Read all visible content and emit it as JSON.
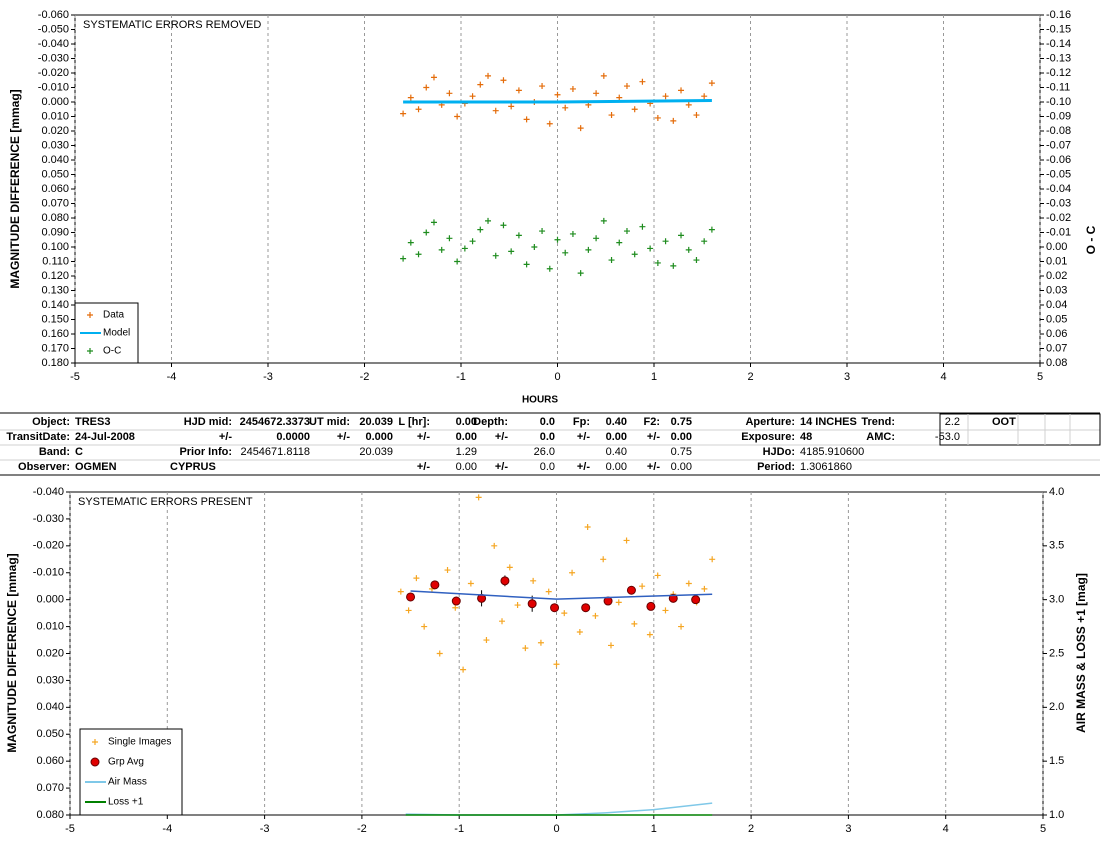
{
  "chart_data": [
    {
      "type": "scatter",
      "title": "SYSTEMATIC ERRORS REMOVED",
      "x_label": "HOURS",
      "y_label": "MAGNITUDE DIFFERENCE [mmag]",
      "y2_label": "O - C",
      "xlim": [
        -5,
        5
      ],
      "xticks": [
        -5,
        -4,
        -3,
        -2,
        -1,
        0,
        1,
        2,
        3,
        4,
        5
      ],
      "ylim": [
        -0.06,
        0.18
      ],
      "y_inverted": true,
      "yticks": [
        {
          "value": -0.06,
          "label": "-0.060"
        },
        {
          "value": -0.05,
          "label": "-0.050"
        },
        {
          "value": -0.04,
          "label": "-0.040"
        },
        {
          "value": -0.03,
          "label": "-0.030"
        },
        {
          "value": -0.02,
          "label": "-0.020"
        },
        {
          "value": -0.01,
          "label": "-0.010"
        },
        {
          "value": 0,
          "label": "0.000"
        },
        {
          "value": 0.01,
          "label": "0.010"
        },
        {
          "value": 0.02,
          "label": "0.020"
        },
        {
          "value": 0.03,
          "label": "0.030"
        },
        {
          "value": 0.04,
          "label": "0.040"
        },
        {
          "value": 0.05,
          "label": "0.050"
        },
        {
          "value": 0.06,
          "label": "0.060"
        },
        {
          "value": 0.07,
          "label": "0.070"
        },
        {
          "value": 0.08,
          "label": "0.080"
        },
        {
          "value": 0.09,
          "label": "0.090"
        },
        {
          "value": 0.1,
          "label": "0.100"
        },
        {
          "value": 0.11,
          "label": "0.110"
        },
        {
          "value": 0.12,
          "label": "0.120"
        },
        {
          "value": 0.13,
          "label": "0.130"
        },
        {
          "value": 0.14,
          "label": "0.140"
        },
        {
          "value": 0.15,
          "label": "0.150"
        },
        {
          "value": 0.16,
          "label": "0.160"
        },
        {
          "value": 0.17,
          "label": "0.170"
        },
        {
          "value": 0.18,
          "label": "0.180"
        }
      ],
      "y2lim": [
        -0.16,
        0.08
      ],
      "y2_inverted": true,
      "y2ticks": [
        -0.16,
        -0.15,
        -0.14,
        -0.13,
        -0.12,
        -0.11,
        {
          "value": -0.1,
          "label": "-0.10"
        },
        -0.09,
        -0.08,
        -0.07,
        -0.06,
        -0.05,
        -0.04,
        -0.03,
        -0.02,
        -0.01,
        {
          "value": 0,
          "label": "0.00"
        },
        0.01,
        0.02,
        0.03,
        0.04,
        0.05,
        0.06,
        0.07,
        0.08
      ],
      "xgrid": true,
      "legend": "lower left",
      "series": [
        {
          "name": "Data",
          "color": "#e46c0a",
          "style": "plus",
          "x": [
            -1.6,
            -1.52,
            -1.44,
            -1.36,
            -1.28,
            -1.2,
            -1.12,
            -1.04,
            -0.96,
            -0.88,
            -0.8,
            -0.72,
            -0.64,
            -0.56,
            -0.48,
            -0.4,
            -0.32,
            -0.24,
            -0.16,
            -0.08,
            0,
            0.08,
            0.16,
            0.24,
            0.32,
            0.4,
            0.48,
            0.56,
            0.64,
            0.72,
            0.8,
            0.88,
            0.96,
            1.04,
            1.12,
            1.2,
            1.28,
            1.36,
            1.44,
            1.52,
            1.6
          ],
          "values": [
            0.008,
            -0.003,
            0.005,
            -0.01,
            -0.017,
            0.002,
            -0.006,
            0.01,
            0.001,
            -0.004,
            -0.012,
            -0.018,
            0.006,
            -0.015,
            0.003,
            -0.008,
            0.012,
            0.0,
            -0.011,
            0.015,
            -0.005,
            0.004,
            -0.009,
            0.018,
            0.002,
            -0.006,
            -0.018,
            0.009,
            -0.003,
            -0.011,
            0.005,
            -0.014,
            0.001,
            0.011,
            -0.004,
            0.013,
            -0.008,
            0.002,
            0.009,
            -0.004,
            -0.013
          ]
        },
        {
          "name": "Model",
          "color": "#00b0f0",
          "style": "line",
          "x": [
            -1.6,
            0,
            1.6
          ],
          "values": [
            0.0,
            0.0,
            -0.001
          ]
        },
        {
          "name": "O-C",
          "color": "#1e8c1e",
          "style": "plus",
          "axis": "y2",
          "x": [
            -1.6,
            -1.52,
            -1.44,
            -1.36,
            -1.28,
            -1.2,
            -1.12,
            -1.04,
            -0.96,
            -0.88,
            -0.8,
            -0.72,
            -0.64,
            -0.56,
            -0.48,
            -0.4,
            -0.32,
            -0.24,
            -0.16,
            -0.08,
            0,
            0.08,
            0.16,
            0.24,
            0.32,
            0.4,
            0.48,
            0.56,
            0.64,
            0.72,
            0.8,
            0.88,
            0.96,
            1.04,
            1.12,
            1.2,
            1.28,
            1.36,
            1.44,
            1.52,
            1.6
          ],
          "values": [
            0.008,
            -0.003,
            0.005,
            -0.01,
            -0.017,
            0.002,
            -0.006,
            0.01,
            0.001,
            -0.004,
            -0.012,
            -0.018,
            0.006,
            -0.015,
            0.003,
            -0.008,
            0.012,
            0.0,
            -0.011,
            0.015,
            -0.005,
            0.004,
            -0.009,
            0.018,
            0.002,
            -0.006,
            -0.018,
            0.009,
            -0.003,
            -0.011,
            0.005,
            -0.014,
            0.001,
            0.011,
            -0.004,
            0.013,
            -0.008,
            0.002,
            0.009,
            -0.004,
            -0.012
          ]
        }
      ]
    },
    {
      "type": "scatter",
      "title": "SYSTEMATIC ERRORS PRESENT",
      "y_label": "MAGNITUDE DIFFERENCE [mmag]",
      "y2_label": "AIR MASS & LOSS +1 [mag]",
      "xlim": [
        -5,
        5
      ],
      "xticks": [
        -5,
        -4,
        -3,
        -2,
        -1,
        0,
        1,
        2,
        3,
        4,
        5
      ],
      "ylim": [
        -0.04,
        0.08
      ],
      "y_inverted": true,
      "yticks": [
        {
          "value": -0.04,
          "label": "-0.040"
        },
        {
          "value": -0.03,
          "label": "-0.030"
        },
        {
          "value": -0.02,
          "label": "-0.020"
        },
        {
          "value": -0.01,
          "label": "-0.010"
        },
        {
          "value": 0,
          "label": "0.000"
        },
        {
          "value": 0.01,
          "label": "0.010"
        },
        {
          "value": 0.02,
          "label": "0.020"
        },
        {
          "value": 0.03,
          "label": "0.030"
        },
        {
          "value": 0.04,
          "label": "0.040"
        },
        {
          "value": 0.05,
          "label": "0.050"
        },
        {
          "value": 0.06,
          "label": "0.060"
        },
        {
          "value": 0.07,
          "label": "0.070"
        },
        {
          "value": 0.08,
          "label": "0.080"
        }
      ],
      "y2lim": [
        1,
        4
      ],
      "y2_inverted": false,
      "y2ticks": [
        {
          "value": 1,
          "label": "1.0"
        },
        {
          "value": 1.5,
          "label": "1.5"
        },
        {
          "value": 2,
          "label": "2.0"
        },
        {
          "value": 2.5,
          "label": "2.5"
        },
        {
          "value": 3,
          "label": "3.0"
        },
        {
          "value": 3.5,
          "label": "3.5"
        },
        {
          "value": 4,
          "label": "4.0"
        }
      ],
      "xgrid": true,
      "legend": "lower left",
      "series": [
        {
          "name": "Single Images",
          "color": "#f5a623",
          "style": "plus",
          "x": [
            -1.6,
            -1.52,
            -1.44,
            -1.36,
            -1.28,
            -1.2,
            -1.12,
            -1.04,
            -0.96,
            -0.88,
            -0.8,
            -0.72,
            -0.64,
            -0.56,
            -0.48,
            -0.4,
            -0.32,
            -0.24,
            -0.16,
            -0.08,
            0,
            0.08,
            0.16,
            0.24,
            0.32,
            0.4,
            0.48,
            0.56,
            0.64,
            0.72,
            0.8,
            0.88,
            0.96,
            1.04,
            1.12,
            1.2,
            1.28,
            1.36,
            1.44,
            1.52,
            1.6
          ],
          "values": [
            -0.003,
            0.004,
            -0.008,
            0.01,
            -0.004,
            0.02,
            -0.011,
            0.003,
            0.026,
            -0.006,
            -0.038,
            0.015,
            -0.02,
            0.008,
            -0.012,
            0.002,
            0.018,
            -0.007,
            0.016,
            -0.003,
            0.024,
            0.005,
            -0.01,
            0.012,
            -0.027,
            0.006,
            -0.015,
            0.017,
            0.001,
            -0.022,
            0.009,
            -0.005,
            0.013,
            -0.009,
            0.004,
            -0.002,
            0.01,
            -0.006,
            0.001,
            -0.004,
            -0.015
          ]
        },
        {
          "name": "Grp Avg",
          "color": "#e00000",
          "style": "circle",
          "x": [
            -1.5,
            -1.25,
            -1.03,
            -0.77,
            -0.53,
            -0.25,
            -0.02,
            0.3,
            0.53,
            0.77,
            0.97,
            1.2,
            1.43
          ],
          "values": [
            -0.001,
            -0.0055,
            0.0005,
            -0.0005,
            -0.007,
            0.0015,
            0.003,
            0.003,
            0.0005,
            -0.0035,
            0.0025,
            -0.0005,
            0.0
          ],
          "errors": [
            0.0015,
            0.0015,
            0.0015,
            0.003,
            0.002,
            0.003,
            0.0015,
            0.0015,
            0.0015,
            0.0015,
            0.0015,
            0.0015,
            0.0015
          ]
        },
        {
          "name": "Air Mass",
          "color": "#7fc8e8",
          "style": "line",
          "axis": "y2",
          "x": [
            -1.55,
            -1,
            0,
            0.5,
            1,
            1.6
          ],
          "values": [
            1.008,
            1.0,
            1.0,
            1.02,
            1.05,
            1.11
          ]
        },
        {
          "name": "Loss +1",
          "color": "#008000",
          "style": "line",
          "axis": "y2",
          "x": [
            -1.55,
            1.6
          ],
          "values": [
            1.0,
            1.0
          ]
        },
        {
          "color": "#3060c0",
          "style": "line",
          "x": [
            -1.5,
            0,
            1.6
          ],
          "values": [
            -0.0032,
            -0.0002,
            -0.002
          ]
        }
      ]
    }
  ],
  "table": {
    "rows": [
      [
        "Object:",
        "TRES3",
        "HJD mid:",
        "2454672.3373",
        "UT mid:",
        "20.039",
        "L [hr]:",
        "0.00",
        "Depth:",
        "0.0",
        "Fp:",
        "0.40",
        "F2:",
        "0.75",
        "Aperture:",
        "14 INCHES",
        "Trend:",
        "2.2",
        "OOT"
      ],
      [
        "TransitDate:",
        "24-Jul-2008",
        "+/-",
        "0.0000",
        "+/-",
        "0.000",
        "+/-",
        "0.00",
        "+/-",
        "0.0",
        "+/-",
        "0.00",
        "+/-",
        "0.00",
        "Exposure:",
        "48",
        "AMC:",
        "-53.0",
        null
      ],
      [
        "Band:",
        "C",
        "Prior Info:",
        "2454671.8118",
        null,
        "20.039",
        null,
        "1.29",
        null,
        "26.0",
        null,
        "0.40",
        null,
        "0.75",
        "HJDo:",
        "4185.910600",
        null,
        null,
        null
      ],
      [
        "Observer:",
        "OGMEN",
        "CYPRUS",
        null,
        null,
        null,
        "+/-",
        "0.00",
        "+/-",
        "0.0",
        "+/-",
        "0.00",
        "+/-",
        "0.00",
        "Period:",
        "1.3061860",
        null,
        null,
        null
      ]
    ]
  }
}
